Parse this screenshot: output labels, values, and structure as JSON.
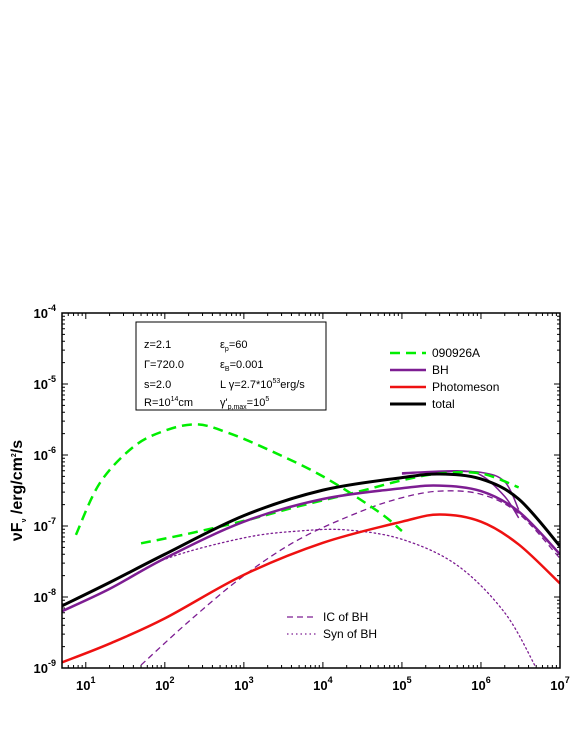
{
  "chart_data": {
    "type": "line",
    "xscale": "log",
    "yscale": "log",
    "xlim": [
      5,
      10000000
    ],
    "ylim": [
      1e-09,
      0.0001
    ],
    "xlabel": "",
    "ylabel": "νFν /erg/cm²/s",
    "ylabel_parts": {
      "main": "νF",
      "sub": "ν",
      "unit": " /erg/cm",
      "sup": "2",
      "tail": "/s"
    },
    "x_tick_labels": [
      {
        "value": 10,
        "base": "10",
        "exp": "1"
      },
      {
        "value": 100,
        "base": "10",
        "exp": "2"
      },
      {
        "value": 1000,
        "base": "10",
        "exp": "3"
      },
      {
        "value": 10000,
        "base": "10",
        "exp": "4"
      },
      {
        "value": 100000,
        "base": "10",
        "exp": "5"
      },
      {
        "value": 1000000,
        "base": "10",
        "exp": "6"
      },
      {
        "value": 10000000,
        "base": "10",
        "exp": "7"
      }
    ],
    "y_tick_labels": [
      {
        "value": 1e-09,
        "base": "10",
        "exp": "-9"
      },
      {
        "value": 1e-08,
        "base": "10",
        "exp": "-8"
      },
      {
        "value": 1e-07,
        "base": "10",
        "exp": "-7"
      },
      {
        "value": 1e-06,
        "base": "10",
        "exp": "-6"
      },
      {
        "value": 1e-05,
        "base": "10",
        "exp": "-5"
      },
      {
        "value": 0.0001,
        "base": "10",
        "exp": "-4"
      }
    ],
    "parameters": [
      [
        {
          "t": "z=2.1"
        }
      ],
      [
        {
          "t": "ε"
        },
        {
          "sub": "p"
        },
        {
          "t": "=60"
        }
      ],
      [
        {
          "t": "Γ=720.0"
        }
      ],
      [
        {
          "t": "ε"
        },
        {
          "sub": "B"
        },
        {
          "t": "=0.001"
        }
      ],
      [
        {
          "t": "s=2.0"
        }
      ],
      [
        {
          "t": "L γ=2.7*10"
        },
        {
          "sup": "53"
        },
        {
          "t": "erg/s"
        }
      ],
      [
        {
          "t": "R=10"
        },
        {
          "sup": "14"
        },
        {
          "t": "cm"
        }
      ],
      [
        {
          "t": "γ'"
        },
        {
          "sub": "p,max"
        },
        {
          "t": "=10"
        },
        {
          "sup": "5"
        }
      ]
    ],
    "legend_placement": "top-right",
    "series": [
      {
        "name": "090926A",
        "color": "#00ee00",
        "style": "dashed",
        "width": 2.5,
        "legend": "upper",
        "segments": [
          [
            [
              7.5,
              7.5e-08
            ],
            [
              15,
              4e-07
            ],
            [
              40,
              1.3e-06
            ],
            [
              100,
              2.2e-06
            ],
            [
              250,
              2.7e-06
            ],
            [
              600,
              2.1e-06
            ],
            [
              2000,
              1.2e-06
            ],
            [
              10000,
              5e-07
            ],
            [
              50000,
              1.6e-07
            ],
            [
              100000,
              8.5e-08
            ]
          ],
          [
            [
              50,
              5.7e-08
            ],
            [
              200,
              7.8e-08
            ],
            [
              1000,
              1.18e-07
            ],
            [
              5000,
              1.9e-07
            ],
            [
              30000,
              3.1e-07
            ],
            [
              100000,
              4.4e-07
            ],
            [
              300000,
              5.5e-07
            ],
            [
              1000000,
              5.5e-07
            ],
            [
              3000000,
              3.5e-07
            ]
          ]
        ]
      },
      {
        "name": "BH",
        "color": "#7d1d92",
        "style": "solid",
        "width": 2.5,
        "legend": "upper",
        "points": [
          [
            5,
            6.3e-09
          ],
          [
            20,
            1.3e-08
          ],
          [
            100,
            3.5e-08
          ],
          [
            1000,
            1.15e-07
          ],
          [
            10000,
            2.4e-07
          ],
          [
            100000,
            3.4e-07
          ],
          [
            300000,
            3.7e-07
          ],
          [
            1000000,
            3.1e-07
          ],
          [
            3000000,
            1.6e-07
          ],
          [
            10000000,
            4e-08
          ]
        ]
      },
      {
        "name": "Photomeson",
        "color": "#ee1111",
        "style": "solid",
        "width": 2.5,
        "legend": "upper",
        "points": [
          [
            5,
            1.2e-09
          ],
          [
            20,
            2.2e-09
          ],
          [
            100,
            5e-09
          ],
          [
            1000,
            2.05e-08
          ],
          [
            10000,
            5.8e-08
          ],
          [
            100000,
            1.15e-07
          ],
          [
            300000,
            1.45e-07
          ],
          [
            1000000,
            1.15e-07
          ],
          [
            3000000,
            5.5e-08
          ],
          [
            10000000,
            1.55e-08
          ]
        ]
      },
      {
        "name": "total",
        "color": "#000000",
        "style": "solid",
        "width": 3,
        "legend": "upper",
        "points": [
          [
            5,
            7.5e-09
          ],
          [
            20,
            1.6e-08
          ],
          [
            100,
            4e-08
          ],
          [
            1000,
            1.4e-07
          ],
          [
            10000,
            3.2e-07
          ],
          [
            100000,
            4.8e-07
          ],
          [
            300000,
            5.4e-07
          ],
          [
            1000000,
            4.6e-07
          ],
          [
            3000000,
            2.4e-07
          ],
          [
            10000000,
            5.2e-08
          ]
        ]
      },
      {
        "name": "IC of BH",
        "color": "#7d1d92",
        "style": "dashed",
        "width": 1.3,
        "legend": "lower",
        "points": [
          [
            50,
            1.1e-09
          ],
          [
            200,
            4.5e-09
          ],
          [
            1000,
            2e-08
          ],
          [
            5000,
            6.5e-08
          ],
          [
            30000,
            1.6e-07
          ],
          [
            100000,
            2.5e-07
          ],
          [
            300000,
            3.1e-07
          ],
          [
            1000000,
            2.8e-07
          ],
          [
            3000000,
            1.5e-07
          ],
          [
            10000000,
            3.5e-08
          ]
        ]
      },
      {
        "name": "Syn of BH",
        "color": "#7d1d92",
        "style": "dotted",
        "width": 1.3,
        "legend": "lower",
        "points": [
          [
            5,
            6.2e-09
          ],
          [
            20,
            1.3e-08
          ],
          [
            100,
            3.4e-08
          ],
          [
            1000,
            6.8e-08
          ],
          [
            5000,
            8.5e-08
          ],
          [
            20000,
            8.8e-08
          ],
          [
            100000,
            6.5e-08
          ],
          [
            500000,
            2.8e-08
          ],
          [
            2000000,
            6e-09
          ],
          [
            5000000,
            1e-09
          ]
        ]
      },
      {
        "name": "",
        "color": "#7d1d92",
        "style": "solid",
        "width": 1.5,
        "legend": "none",
        "segments": [
          [
            [
              100000,
              5.4e-07
            ],
            [
              300000,
              5.8e-07
            ],
            [
              1000000,
              5.7e-07
            ],
            [
              2000000,
              4.2e-07
            ],
            [
              3000000,
              1.7e-07
            ]
          ],
          [
            [
              100000,
              5.6e-07
            ],
            [
              500000,
              6e-07
            ],
            [
              1000000,
              5.2e-07
            ],
            [
              2000000,
              2.6e-07
            ],
            [
              3000000,
              1.3e-07
            ]
          ]
        ]
      }
    ]
  }
}
